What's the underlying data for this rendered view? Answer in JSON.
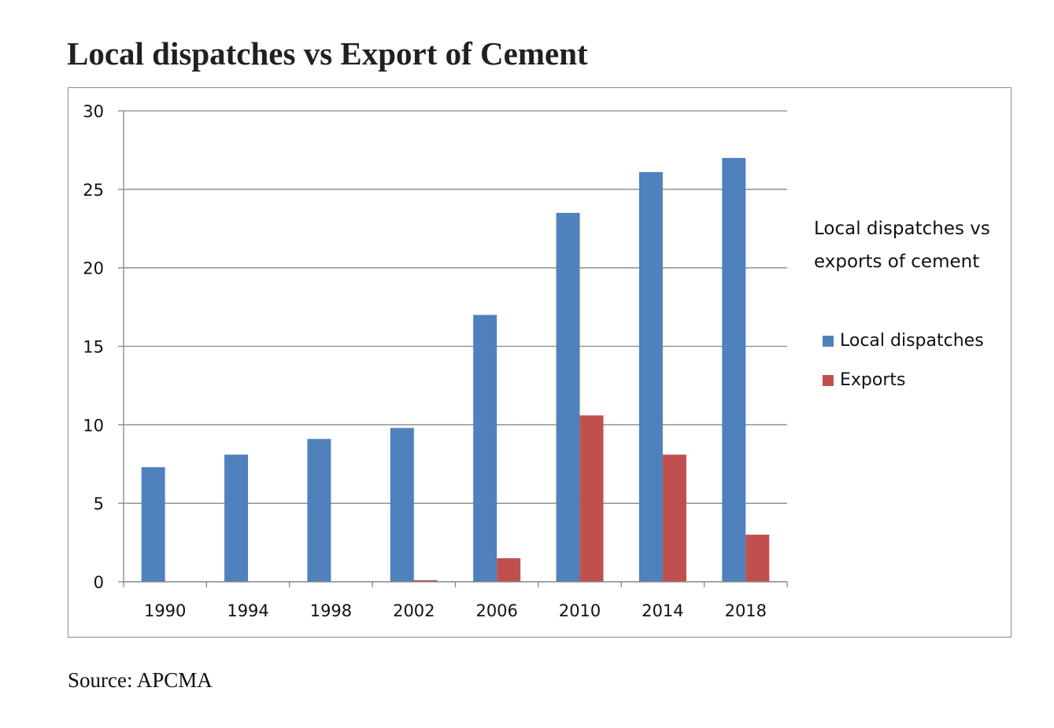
{
  "title": "Local dispatches vs Export of Cement",
  "source": "Source: APCMA",
  "chart_data": {
    "type": "bar",
    "title": "Local dispatches vs Export of Cement",
    "legend_title": [
      "Local dispatches vs",
      "exports of cement"
    ],
    "legend_position": "right",
    "categories": [
      "1990",
      "1994",
      "1998",
      "2002",
      "2006",
      "2010",
      "2014",
      "2018"
    ],
    "series": [
      {
        "name": "Local dispatches",
        "color": "#4f81bd",
        "values": [
          7.3,
          8.1,
          9.1,
          9.8,
          17.0,
          23.5,
          26.1,
          27.0
        ]
      },
      {
        "name": "Exports",
        "color": "#c0504d",
        "values": [
          0,
          0,
          0,
          0.1,
          1.5,
          10.6,
          8.1,
          3.0
        ]
      }
    ],
    "ylim": [
      0,
      30
    ],
    "yticks": [
      0,
      5,
      10,
      15,
      20,
      25,
      30
    ],
    "grid": true,
    "xlabel": "",
    "ylabel": ""
  }
}
